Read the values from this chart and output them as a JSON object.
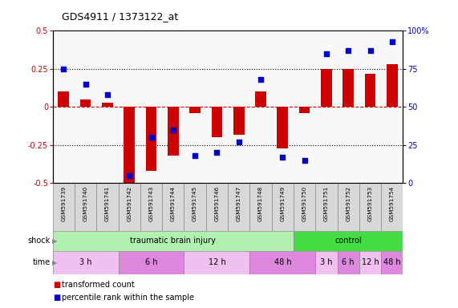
{
  "title": "GDS4911 / 1373122_at",
  "samples": [
    "GSM591739",
    "GSM591740",
    "GSM591741",
    "GSM591742",
    "GSM591743",
    "GSM591744",
    "GSM591745",
    "GSM591746",
    "GSM591747",
    "GSM591748",
    "GSM591749",
    "GSM591750",
    "GSM591751",
    "GSM591752",
    "GSM591753",
    "GSM591754"
  ],
  "bar_values": [
    0.1,
    0.05,
    0.03,
    -0.5,
    -0.42,
    -0.32,
    -0.04,
    -0.2,
    -0.18,
    0.1,
    -0.27,
    -0.04,
    0.25,
    0.25,
    0.22,
    0.28
  ],
  "dot_values": [
    75,
    65,
    58,
    5,
    30,
    35,
    18,
    20,
    27,
    68,
    17,
    15,
    85,
    87,
    87,
    93
  ],
  "ylim": [
    -0.5,
    0.5
  ],
  "y2lim": [
    0,
    100
  ],
  "yticks": [
    -0.5,
    -0.25,
    0,
    0.25,
    0.5
  ],
  "y2ticks": [
    0,
    25,
    50,
    75,
    100
  ],
  "bar_color": "#CC0000",
  "dot_color": "#0000CC",
  "hline_color": "#CC0000",
  "dotted_line_color": "#000000",
  "chart_bg": "#f8f8f8",
  "sample_bg": "#d8d8d8",
  "shock_groups": [
    {
      "label": "traumatic brain injury",
      "start": 0,
      "end": 11,
      "color": "#b0f0b0"
    },
    {
      "label": "control",
      "start": 11,
      "end": 16,
      "color": "#44dd44"
    }
  ],
  "time_groups": [
    {
      "label": "3 h",
      "start": 0,
      "end": 3,
      "color": "#f0c0f0"
    },
    {
      "label": "6 h",
      "start": 3,
      "end": 6,
      "color": "#dd88dd"
    },
    {
      "label": "12 h",
      "start": 6,
      "end": 9,
      "color": "#f0c0f0"
    },
    {
      "label": "48 h",
      "start": 9,
      "end": 12,
      "color": "#dd88dd"
    },
    {
      "label": "3 h",
      "start": 12,
      "end": 13,
      "color": "#f0c0f0"
    },
    {
      "label": "6 h",
      "start": 13,
      "end": 14,
      "color": "#dd88dd"
    },
    {
      "label": "12 h",
      "start": 14,
      "end": 15,
      "color": "#f0c0f0"
    },
    {
      "label": "48 h",
      "start": 15,
      "end": 16,
      "color": "#dd88dd"
    }
  ],
  "legend_bar_color": "#CC0000",
  "legend_dot_color": "#0000CC",
  "legend_bar_label": "transformed count",
  "legend_dot_label": "percentile rank within the sample"
}
